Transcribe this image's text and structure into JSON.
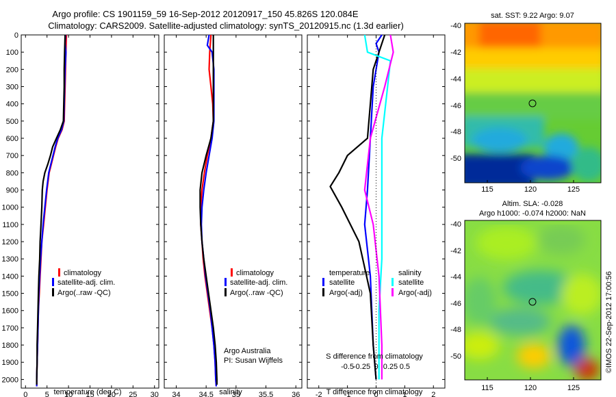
{
  "header": {
    "title_line1": "Argo profile: CS 1901159_59 16-Sep-2012 20120917_150 45.826S 120.084E",
    "title_line2": "Climatology: CARS2009. Satellite-adjusted climatology: synTS_20120915.nc (1.3d earlier)"
  },
  "colors": {
    "climatology": "#ff0000",
    "satellite": "#0000ff",
    "argo": "#000000",
    "sal_satellite": "#00ffff",
    "sal_argo": "#ff00ff"
  },
  "chart_data": [
    {
      "id": "temperature",
      "type": "line",
      "xlabel": "temperature (deg C)",
      "xlim": [
        -1,
        31
      ],
      "xticks": [
        0,
        5,
        10,
        15,
        20,
        25,
        30
      ],
      "ylim": [
        2050,
        0
      ],
      "yticks": [
        0,
        100,
        200,
        300,
        400,
        500,
        600,
        700,
        800,
        900,
        1000,
        1100,
        1200,
        1300,
        1400,
        1500,
        1600,
        1700,
        1800,
        1900,
        2000
      ],
      "legend": [
        "climatology",
        "satellite-adj. clim.",
        "Argo(..raw -QC)"
      ],
      "series": [
        {
          "name": "climatology",
          "color": "#ff0000",
          "points": [
            [
              9.5,
              0
            ],
            [
              9.4,
              100
            ],
            [
              9.3,
              200
            ],
            [
              9.2,
              300
            ],
            [
              9.1,
              400
            ],
            [
              9.0,
              500
            ],
            [
              8.5,
              550
            ],
            [
              7.6,
              600
            ],
            [
              7.0,
              650
            ],
            [
              6.5,
              700
            ],
            [
              6.0,
              750
            ],
            [
              5.5,
              800
            ],
            [
              5.0,
              900
            ],
            [
              4.6,
              1000
            ],
            [
              4.2,
              1100
            ],
            [
              3.8,
              1200
            ],
            [
              3.6,
              1300
            ],
            [
              3.4,
              1400
            ],
            [
              3.2,
              1500
            ],
            [
              3.0,
              1600
            ],
            [
              2.9,
              1700
            ],
            [
              2.8,
              1800
            ],
            [
              2.7,
              1900
            ],
            [
              2.6,
              2000
            ],
            [
              2.6,
              2040
            ]
          ]
        },
        {
          "name": "satellite-adj. clim.",
          "color": "#0000ff",
          "points": [
            [
              9.3,
              0
            ],
            [
              9.2,
              50
            ],
            [
              9.4,
              100
            ],
            [
              9.2,
              200
            ],
            [
              9.1,
              300
            ],
            [
              9.0,
              400
            ],
            [
              8.9,
              500
            ],
            [
              8.4,
              550
            ],
            [
              7.5,
              600
            ],
            [
              6.9,
              650
            ],
            [
              6.4,
              700
            ],
            [
              5.9,
              750
            ],
            [
              5.4,
              800
            ],
            [
              4.9,
              900
            ],
            [
              4.5,
              1000
            ],
            [
              4.1,
              1100
            ],
            [
              3.8,
              1200
            ],
            [
              3.5,
              1300
            ],
            [
              3.3,
              1400
            ],
            [
              3.1,
              1500
            ],
            [
              3.0,
              1600
            ],
            [
              2.9,
              1700
            ],
            [
              2.8,
              1800
            ],
            [
              2.7,
              1900
            ],
            [
              2.6,
              2000
            ],
            [
              2.6,
              2040
            ]
          ]
        },
        {
          "name": "Argo(..raw -QC)",
          "color": "#000000",
          "points": [
            [
              9.2,
              0
            ],
            [
              9.1,
              100
            ],
            [
              9.0,
              200
            ],
            [
              9.0,
              300
            ],
            [
              8.9,
              400
            ],
            [
              8.8,
              500
            ],
            [
              8.1,
              550
            ],
            [
              7.2,
              600
            ],
            [
              6.3,
              650
            ],
            [
              5.8,
              700
            ],
            [
              5.2,
              750
            ],
            [
              4.5,
              800
            ],
            [
              4.1,
              850
            ],
            [
              3.9,
              900
            ],
            [
              3.8,
              1000
            ],
            [
              3.6,
              1100
            ],
            [
              3.4,
              1200
            ],
            [
              3.3,
              1300
            ],
            [
              3.1,
              1400
            ],
            [
              3.0,
              1500
            ],
            [
              2.9,
              1600
            ],
            [
              2.8,
              1700
            ],
            [
              2.7,
              1800
            ],
            [
              2.7,
              1900
            ],
            [
              2.6,
              2000
            ],
            [
              2.6,
              2030
            ]
          ]
        }
      ]
    },
    {
      "id": "salinity",
      "type": "line",
      "xlabel": "salinity",
      "xlim": [
        33.8,
        36.1
      ],
      "xticks": [
        34,
        34.5,
        35,
        35.5,
        36
      ],
      "ylim": [
        2050,
        0
      ],
      "legend": [
        "climatology",
        "satellite-adj. clim.",
        "Argo(..raw -QC)"
      ],
      "annotation": [
        "Argo Australia",
        "PI: Susan Wijffels"
      ],
      "series": [
        {
          "name": "climatology",
          "color": "#ff0000",
          "points": [
            [
              34.58,
              0
            ],
            [
              34.56,
              100
            ],
            [
              34.55,
              200
            ],
            [
              34.58,
              300
            ],
            [
              34.61,
              400
            ],
            [
              34.62,
              500
            ],
            [
              34.58,
              600
            ],
            [
              34.52,
              700
            ],
            [
              34.47,
              800
            ],
            [
              34.43,
              900
            ],
            [
              34.41,
              1000
            ],
            [
              34.41,
              1100
            ],
            [
              34.43,
              1200
            ],
            [
              34.45,
              1300
            ],
            [
              34.48,
              1400
            ],
            [
              34.52,
              1500
            ],
            [
              34.56,
              1600
            ],
            [
              34.6,
              1700
            ],
            [
              34.63,
              1800
            ],
            [
              34.65,
              1900
            ],
            [
              34.66,
              2000
            ],
            [
              34.67,
              2040
            ]
          ]
        },
        {
          "name": "satellite-adj. clim.",
          "color": "#0000ff",
          "points": [
            [
              34.55,
              0
            ],
            [
              34.52,
              60
            ],
            [
              34.6,
              100
            ],
            [
              34.63,
              200
            ],
            [
              34.63,
              300
            ],
            [
              34.63,
              400
            ],
            [
              34.63,
              500
            ],
            [
              34.6,
              600
            ],
            [
              34.55,
              700
            ],
            [
              34.5,
              800
            ],
            [
              34.46,
              900
            ],
            [
              34.43,
              1000
            ],
            [
              34.42,
              1100
            ],
            [
              34.43,
              1200
            ],
            [
              34.46,
              1300
            ],
            [
              34.49,
              1400
            ],
            [
              34.53,
              1500
            ],
            [
              34.57,
              1600
            ],
            [
              34.6,
              1700
            ],
            [
              34.63,
              1800
            ],
            [
              34.65,
              1900
            ],
            [
              34.66,
              2000
            ],
            [
              34.67,
              2040
            ]
          ]
        },
        {
          "name": "Argo(..raw -QC)",
          "color": "#000000",
          "points": [
            [
              34.62,
              0
            ],
            [
              34.62,
              100
            ],
            [
              34.62,
              200
            ],
            [
              34.62,
              300
            ],
            [
              34.62,
              400
            ],
            [
              34.62,
              500
            ],
            [
              34.58,
              600
            ],
            [
              34.5,
              700
            ],
            [
              34.43,
              800
            ],
            [
              34.4,
              900
            ],
            [
              34.4,
              1000
            ],
            [
              34.41,
              1100
            ],
            [
              34.43,
              1200
            ],
            [
              34.46,
              1300
            ],
            [
              34.5,
              1400
            ],
            [
              34.54,
              1500
            ],
            [
              34.58,
              1600
            ],
            [
              34.62,
              1700
            ],
            [
              34.65,
              1800
            ],
            [
              34.67,
              1900
            ],
            [
              34.68,
              2000
            ],
            [
              34.68,
              2030
            ]
          ]
        }
      ]
    },
    {
      "id": "differences",
      "type": "line",
      "xlabel": "T difference from climatology",
      "xlabel2": "S difference from climatology",
      "xlim": [
        -2.4,
        2.4
      ],
      "xticks": [
        -2,
        -1,
        0,
        1,
        2
      ],
      "xticks2": [
        "-0.5",
        "-0.25",
        "0",
        "0.25",
        "0.5"
      ],
      "ylim": [
        2050,
        0
      ],
      "legend_left": [
        "temperature",
        "satellite",
        "Argo(-adj)"
      ],
      "legend_right": [
        "salinity",
        "satellite",
        "Argo(-adj)"
      ],
      "series": [
        {
          "name": "satellite",
          "group": "temperature",
          "color": "#0000ff",
          "points": [
            [
              0.2,
              0
            ],
            [
              0.0,
              50
            ],
            [
              0.1,
              100
            ],
            [
              -0.1,
              300
            ],
            [
              -0.2,
              600
            ],
            [
              -0.3,
              900
            ],
            [
              -0.4,
              1100
            ],
            [
              -0.2,
              1400
            ],
            [
              -0.1,
              1800
            ],
            [
              0.0,
              2000
            ]
          ]
        },
        {
          "name": "Argo(-adj)",
          "group": "temperature",
          "color": "#000000",
          "points": [
            [
              0.3,
              0
            ],
            [
              0.1,
              100
            ],
            [
              -0.1,
              200
            ],
            [
              -0.2,
              400
            ],
            [
              -0.3,
              600
            ],
            [
              -1.0,
              700
            ],
            [
              -1.3,
              800
            ],
            [
              -1.6,
              880
            ],
            [
              -1.2,
              1000
            ],
            [
              -0.6,
              1200
            ],
            [
              -0.2,
              1500
            ],
            [
              -0.1,
              1800
            ],
            [
              0.0,
              2000
            ]
          ]
        },
        {
          "name": "satellite",
          "group": "salinity",
          "color": "#00ffff",
          "points": [
            [
              -0.4,
              0
            ],
            [
              -0.3,
              100
            ],
            [
              0.5,
              150
            ],
            [
              0.4,
              300
            ],
            [
              0.2,
              600
            ],
            [
              0.2,
              900
            ],
            [
              0.2,
              1300
            ],
            [
              0.1,
              1600
            ],
            [
              0.1,
              2000
            ]
          ]
        },
        {
          "name": "Argo(-adj)",
          "group": "salinity",
          "color": "#ff00ff",
          "points": [
            [
              0.5,
              0
            ],
            [
              0.6,
              100
            ],
            [
              0.3,
              300
            ],
            [
              -0.2,
              600
            ],
            [
              -0.4,
              900
            ],
            [
              -0.1,
              1100
            ],
            [
              0.1,
              1400
            ],
            [
              0.2,
              1800
            ],
            [
              0.2,
              2000
            ]
          ]
        }
      ]
    }
  ],
  "maps": [
    {
      "id": "sst_map",
      "title": "sat. SST: 9.22  Argo: 9.07",
      "xticks": [
        "115",
        "120",
        "125"
      ],
      "yticks": [
        "-40",
        "-42",
        "-44",
        "-46",
        "-48",
        "-50"
      ],
      "marker": [
        120.08,
        -45.83
      ]
    },
    {
      "id": "sla_map",
      "title_line1": "Altim. SLA: -0.028",
      "title_line2": "Argo h1000: -0.074 h2000: NaN",
      "xticks": [
        "115",
        "120",
        "125"
      ],
      "yticks": [
        "-40",
        "-42",
        "-44",
        "-46",
        "-48",
        "-50"
      ],
      "marker": [
        120.08,
        -45.83
      ]
    }
  ],
  "footer": {
    "credit": "©IMOS 22-Sep-2012 17:00:56"
  }
}
